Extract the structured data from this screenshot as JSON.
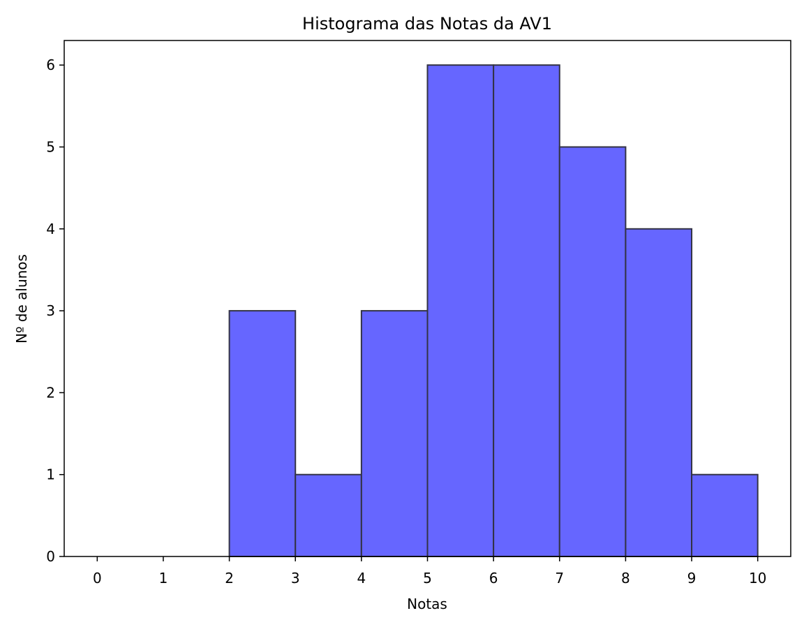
{
  "chart_data": {
    "type": "histogram",
    "title": "Histograma das Notas da AV1",
    "x_label": "Notas",
    "y_label": "Nº de alunos",
    "bins": [
      0,
      1,
      2,
      3,
      4,
      5,
      6,
      7,
      8,
      9,
      10
    ],
    "values": [
      0,
      0,
      3,
      1,
      3,
      6,
      6,
      5,
      4,
      1
    ],
    "color": "#6666ff",
    "edgecolor": "#333344",
    "xlim": [
      -0.5,
      10.5
    ],
    "xticks": [
      0,
      1,
      2,
      3,
      4,
      5,
      6,
      7,
      8,
      9,
      10
    ],
    "ylim": [
      0,
      6.3
    ],
    "yticks": [
      0,
      1,
      2,
      3,
      4,
      5,
      6
    ]
  }
}
